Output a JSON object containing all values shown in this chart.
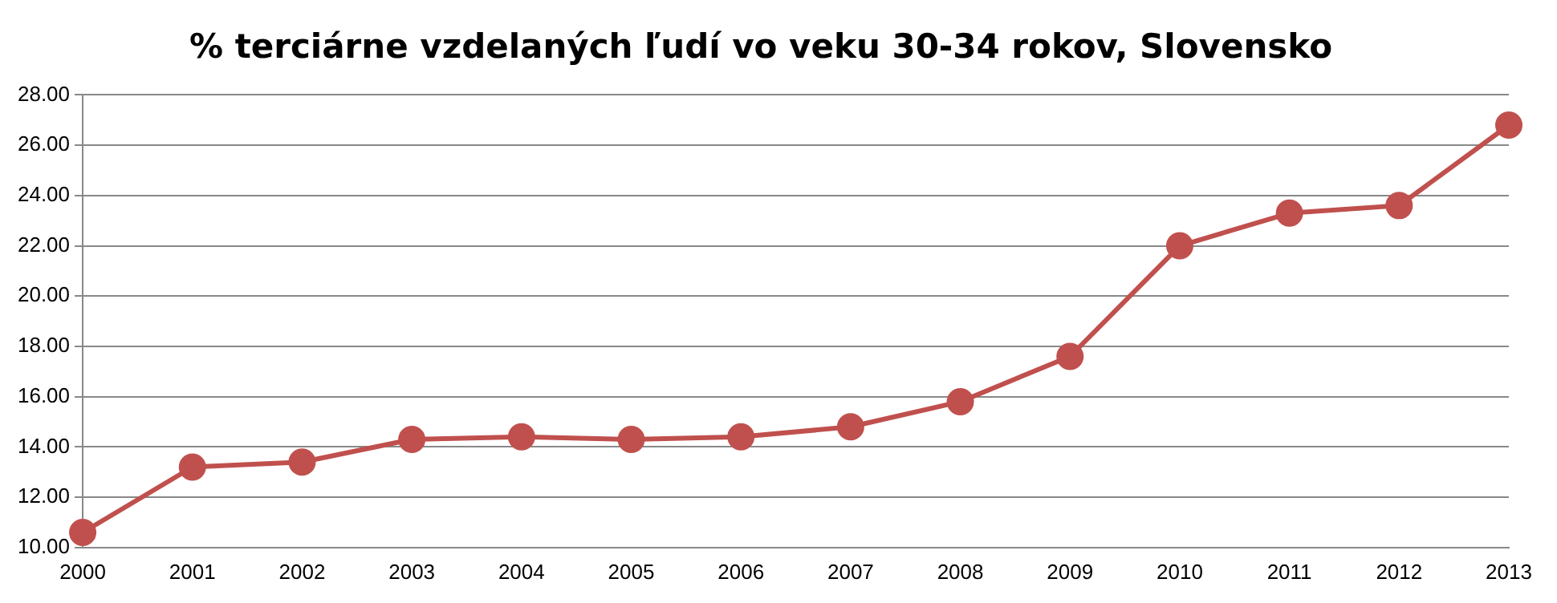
{
  "chart_data": {
    "type": "line",
    "title": "% terciárne vzdelaných ľudí vo veku 30-34 rokov, Slovensko",
    "categories": [
      "2000",
      "2001",
      "2002",
      "2003",
      "2004",
      "2005",
      "2006",
      "2007",
      "2008",
      "2009",
      "2010",
      "2011",
      "2012",
      "2013"
    ],
    "series": [
      {
        "color": "#c0504d",
        "values": [
          10.6,
          13.2,
          13.4,
          14.3,
          14.4,
          14.3,
          14.4,
          14.8,
          15.8,
          17.6,
          22.0,
          23.3,
          23.6,
          26.8
        ]
      }
    ],
    "ylim": [
      10,
      28
    ],
    "yticks": [
      {
        "value": 10,
        "label": "10.00"
      },
      {
        "value": 12,
        "label": "12.00"
      },
      {
        "value": 14,
        "label": "14.00"
      },
      {
        "value": 16,
        "label": "16.00"
      },
      {
        "value": 18,
        "label": "18.00"
      },
      {
        "value": 20,
        "label": "20.00"
      },
      {
        "value": 22,
        "label": "22.00"
      },
      {
        "value": 24,
        "label": "24.00"
      },
      {
        "value": 26,
        "label": "26.00"
      },
      {
        "value": 28,
        "label": "28.00"
      }
    ],
    "grid": "y",
    "legend": false,
    "marker": "circle",
    "line_style": "solid"
  }
}
